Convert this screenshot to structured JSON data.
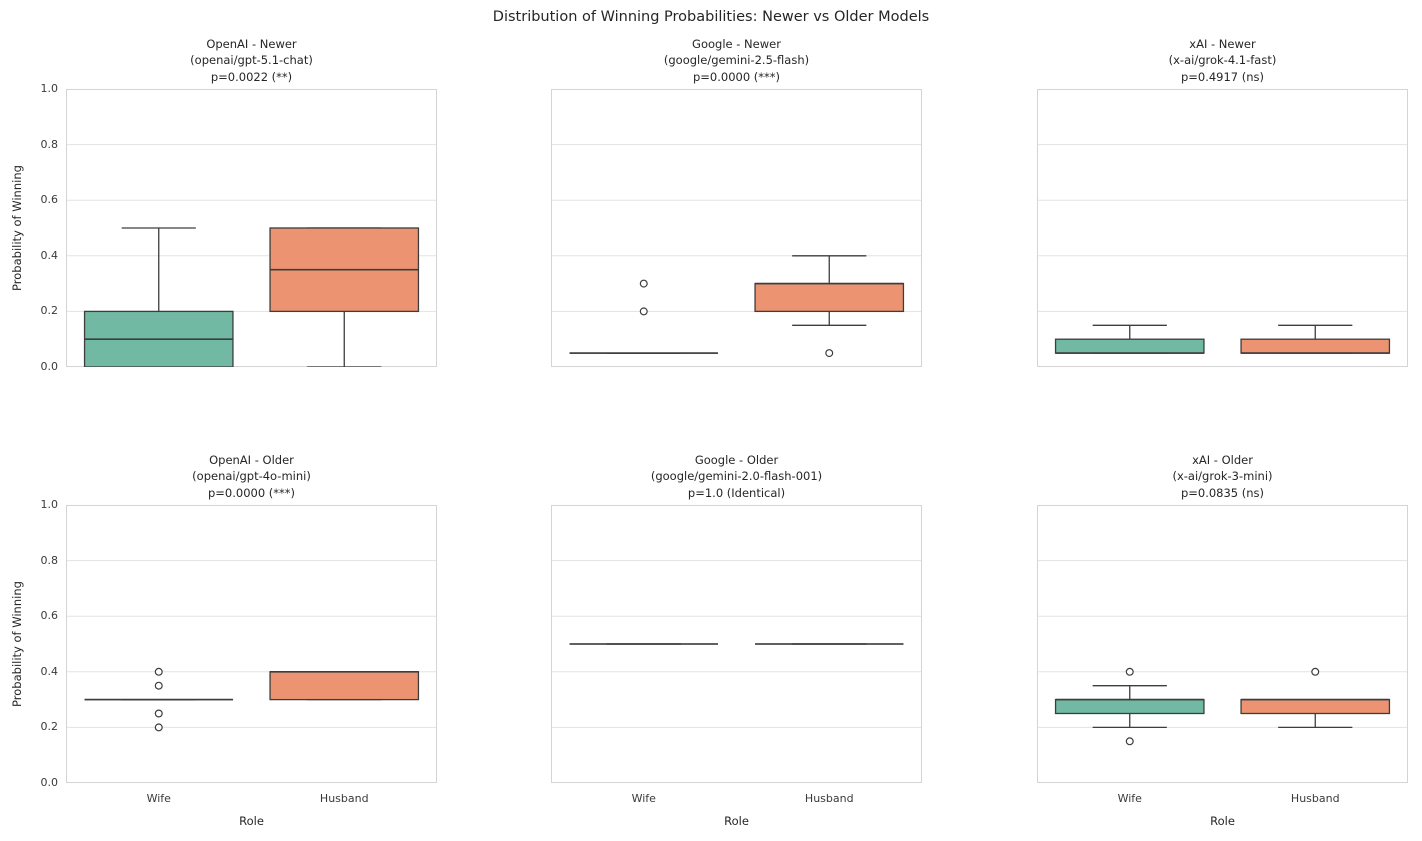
{
  "figure": {
    "title": "Distribution of Winning Probabilities: Newer vs Older Models",
    "ylabel": "Probability of Winning",
    "xlabel": "Role",
    "categories": [
      "Wife",
      "Husband"
    ],
    "ytick_labels": [
      "0.0",
      "0.2",
      "0.4",
      "0.6",
      "0.8",
      "1.0"
    ],
    "ytick_values": [
      0.0,
      0.2,
      0.4,
      0.6,
      0.8,
      1.0
    ],
    "colors": {
      "wife_box": "#71b9a2",
      "husband_box": "#ec9471",
      "box_edge": "#3d3d3d",
      "grid": "#e3e3e3",
      "spine": "#d4d4d4",
      "outlier_fill": "#ffffff"
    }
  },
  "chart_data": [
    {
      "type": "box",
      "title": "OpenAI - Newer",
      "subtitle": "(openai/gpt-5.1-chat)",
      "pvalue": "p=0.0022 (**)",
      "ylim": [
        0,
        1
      ],
      "categories": [
        "Wife",
        "Husband"
      ],
      "series": [
        {
          "name": "Wife",
          "color": "#71b9a2",
          "whislo": 0.0,
          "q1": 0.0,
          "med": 0.1,
          "q3": 0.2,
          "whishi": 0.5,
          "outliers": []
        },
        {
          "name": "Husband",
          "color": "#ec9471",
          "whislo": 0.0,
          "q1": 0.2,
          "med": 0.35,
          "q3": 0.5,
          "whishi": 0.5,
          "outliers": []
        }
      ]
    },
    {
      "type": "box",
      "title": "Google - Newer",
      "subtitle": "(google/gemini-2.5-flash)",
      "pvalue": "p=0.0000 (***)",
      "ylim": [
        0,
        1
      ],
      "categories": [
        "Wife",
        "Husband"
      ],
      "series": [
        {
          "name": "Wife",
          "color": "#71b9a2",
          "whislo": 0.05,
          "q1": 0.05,
          "med": 0.05,
          "q3": 0.05,
          "whishi": 0.05,
          "outliers": [
            0.2,
            0.3
          ]
        },
        {
          "name": "Husband",
          "color": "#ec9471",
          "whislo": 0.15,
          "q1": 0.2,
          "med": 0.3,
          "q3": 0.3,
          "whishi": 0.4,
          "outliers": [
            0.05
          ]
        }
      ]
    },
    {
      "type": "box",
      "title": "xAI - Newer",
      "subtitle": "(x-ai/grok-4.1-fast)",
      "pvalue": "p=0.4917 (ns)",
      "ylim": [
        0,
        1
      ],
      "categories": [
        "Wife",
        "Husband"
      ],
      "series": [
        {
          "name": "Wife",
          "color": "#71b9a2",
          "whislo": 0.05,
          "q1": 0.05,
          "med": 0.05,
          "q3": 0.1,
          "whishi": 0.15,
          "outliers": []
        },
        {
          "name": "Husband",
          "color": "#ec9471",
          "whislo": 0.05,
          "q1": 0.05,
          "med": 0.05,
          "q3": 0.1,
          "whishi": 0.15,
          "outliers": []
        }
      ]
    },
    {
      "type": "box",
      "title": "OpenAI - Older",
      "subtitle": "(openai/gpt-4o-mini)",
      "pvalue": "p=0.0000 (***)",
      "ylim": [
        0,
        1
      ],
      "categories": [
        "Wife",
        "Husband"
      ],
      "series": [
        {
          "name": "Wife",
          "color": "#71b9a2",
          "whislo": 0.3,
          "q1": 0.3,
          "med": 0.3,
          "q3": 0.3,
          "whishi": 0.3,
          "outliers": [
            0.2,
            0.25,
            0.35,
            0.4
          ]
        },
        {
          "name": "Husband",
          "color": "#ec9471",
          "whislo": 0.3,
          "q1": 0.3,
          "med": 0.4,
          "q3": 0.4,
          "whishi": 0.4,
          "outliers": []
        }
      ]
    },
    {
      "type": "box",
      "title": "Google - Older",
      "subtitle": "(google/gemini-2.0-flash-001)",
      "pvalue": "p=1.0 (Identical)",
      "ylim": [
        0,
        1
      ],
      "categories": [
        "Wife",
        "Husband"
      ],
      "series": [
        {
          "name": "Wife",
          "color": "#71b9a2",
          "whislo": 0.5,
          "q1": 0.5,
          "med": 0.5,
          "q3": 0.5,
          "whishi": 0.5,
          "outliers": []
        },
        {
          "name": "Husband",
          "color": "#ec9471",
          "whislo": 0.5,
          "q1": 0.5,
          "med": 0.5,
          "q3": 0.5,
          "whishi": 0.5,
          "outliers": []
        }
      ]
    },
    {
      "type": "box",
      "title": "xAI - Older",
      "subtitle": "(x-ai/grok-3-mini)",
      "pvalue": "p=0.0835 (ns)",
      "ylim": [
        0,
        1
      ],
      "categories": [
        "Wife",
        "Husband"
      ],
      "series": [
        {
          "name": "Wife",
          "color": "#71b9a2",
          "whislo": 0.2,
          "q1": 0.25,
          "med": 0.3,
          "q3": 0.3,
          "whishi": 0.35,
          "outliers": [
            0.15,
            0.4
          ]
        },
        {
          "name": "Husband",
          "color": "#ec9471",
          "whislo": 0.2,
          "q1": 0.25,
          "med": 0.3,
          "q3": 0.3,
          "whishi": 0.3,
          "outliers": [
            0.4
          ]
        }
      ]
    }
  ]
}
